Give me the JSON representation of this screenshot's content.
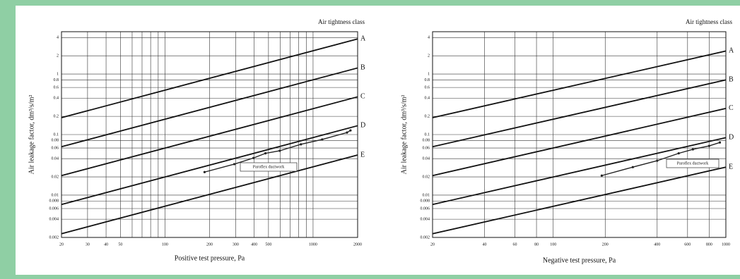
{
  "chart_data": [
    {
      "type": "line",
      "annotation": "Air tightness class",
      "x_label": "Positive test pressure, Pa",
      "y_label": "Air leakage factor, dm³/s/m²",
      "log_x": true,
      "log_y": true,
      "grid": true,
      "xlim": [
        20,
        2000
      ],
      "ylim": [
        0.002,
        5
      ],
      "xticks": [
        20,
        30,
        40,
        50,
        100,
        200,
        300,
        400,
        500,
        1000,
        2000
      ],
      "x_minor_ticks": [
        60,
        70,
        80,
        90,
        600,
        700,
        800,
        900
      ],
      "yticks": [
        0.002,
        0.004,
        0.006,
        0.008,
        0.01,
        0.02,
        0.04,
        0.06,
        0.08,
        0.1,
        0.2,
        0.4,
        0.6,
        0.8,
        1,
        2,
        4
      ],
      "series": [
        {
          "name": "A",
          "color": "#111111",
          "x": [
            20,
            2000
          ],
          "values": [
            0.19,
            3.8
          ]
        },
        {
          "name": "B",
          "color": "#111111",
          "x": [
            20,
            2000
          ],
          "values": [
            0.063,
            1.26
          ]
        },
        {
          "name": "C",
          "color": "#111111",
          "x": [
            20,
            2000
          ],
          "values": [
            0.021,
            0.42
          ]
        },
        {
          "name": "D",
          "color": "#111111",
          "x": [
            20,
            2000
          ],
          "values": [
            0.007,
            0.14
          ]
        },
        {
          "name": "E",
          "color": "#111111",
          "x": [
            20,
            2000
          ],
          "values": [
            0.0023,
            0.046
          ]
        },
        {
          "name": "Paroflex ductwork",
          "color": "#222222",
          "markers": true,
          "x": [
            185,
            294,
            396,
            477,
            596,
            828,
            1153,
            1695,
            1790
          ],
          "values": [
            0.024,
            0.0325,
            0.041,
            0.049,
            0.054,
            0.069,
            0.083,
            0.108,
            0.117
          ]
        }
      ]
    },
    {
      "type": "line",
      "annotation": "Air tightness class",
      "x_label": "Negative test pressure, Pa",
      "y_label": "Air leakage factor, dm³/s/m²",
      "log_x": true,
      "log_y": true,
      "grid": true,
      "xlim": [
        20,
        1000
      ],
      "ylim": [
        0.002,
        5
      ],
      "xticks": [
        20,
        40,
        60,
        80,
        100,
        200,
        400,
        600,
        800,
        1000
      ],
      "x_minor_ticks": [],
      "yticks": [
        0.002,
        0.004,
        0.006,
        0.008,
        0.01,
        0.02,
        0.04,
        0.06,
        0.08,
        0.1,
        0.2,
        0.4,
        0.6,
        0.8,
        1,
        2,
        4
      ],
      "series": [
        {
          "name": "A",
          "color": "#111111",
          "x": [
            20,
            1000
          ],
          "values": [
            0.19,
            2.4
          ]
        },
        {
          "name": "B",
          "color": "#111111",
          "x": [
            20,
            1000
          ],
          "values": [
            0.063,
            0.8
          ]
        },
        {
          "name": "C",
          "color": "#111111",
          "x": [
            20,
            1000
          ],
          "values": [
            0.021,
            0.27
          ]
        },
        {
          "name": "D",
          "color": "#111111",
          "x": [
            20,
            1000
          ],
          "values": [
            0.007,
            0.089
          ]
        },
        {
          "name": "E",
          "color": "#111111",
          "x": [
            20,
            1000
          ],
          "values": [
            0.0023,
            0.029
          ]
        },
        {
          "name": "Paroflex ductwork",
          "color": "#222222",
          "markers": true,
          "x": [
            191,
            289,
            400,
            533,
            644,
            800,
            923
          ],
          "values": [
            0.021,
            0.029,
            0.037,
            0.049,
            0.057,
            0.065,
            0.074
          ]
        }
      ]
    }
  ]
}
